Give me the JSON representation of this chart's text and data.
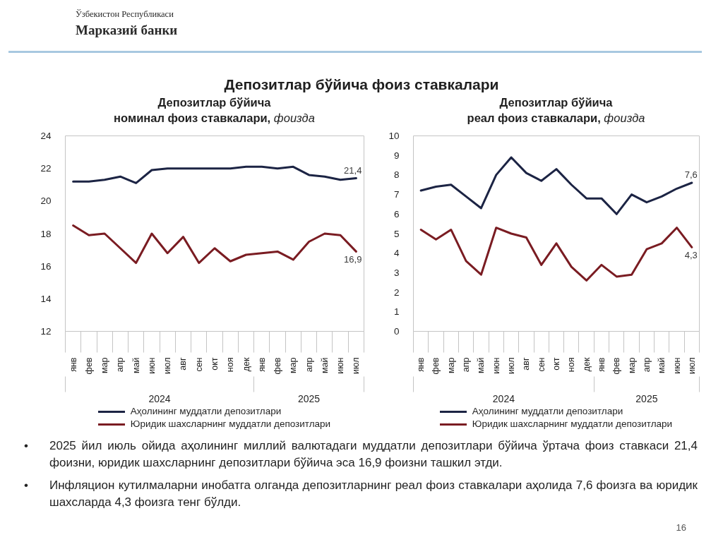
{
  "chart_data": [
    {
      "type": "other",
      "annotations": [
        "Ўзбекистон Республикаси",
        "Марказий банки"
      ],
      "title": "Депозитлар бўйича фоиз ставкалари"
    },
    {
      "type": "line",
      "title": "Депозитлар бўйича\nноминал фоиз ставкалари, фоизда",
      "categories": [
        "янв",
        "фев",
        "мар",
        "апр",
        "май",
        "июн",
        "июл",
        "авг",
        "сен",
        "окт",
        "ноя",
        "дек",
        "янв",
        "фев",
        "мар",
        "апр",
        "май",
        "июн",
        "июл"
      ],
      "ylim": [
        12,
        24
      ],
      "yticks": [
        12,
        14,
        16,
        18,
        20,
        22,
        24
      ],
      "annotations": [
        "2024",
        "2025"
      ],
      "legend": "bottom",
      "series": [
        {
          "name": "Аҳолининг муддатли депозитлари",
          "color": "#1c2444",
          "values": [
            21.2,
            21.2,
            21.3,
            21.5,
            21.1,
            21.9,
            22.0,
            22.0,
            22.0,
            22.0,
            22.0,
            22.1,
            22.1,
            22.0,
            22.1,
            21.6,
            21.5,
            21.3,
            21.4
          ],
          "value_labels": [
            null,
            null,
            null,
            null,
            null,
            null,
            null,
            null,
            null,
            null,
            null,
            null,
            null,
            null,
            null,
            null,
            null,
            null,
            "21,4"
          ]
        },
        {
          "name": "Юридик шахсларнинг муддатли депозитлари",
          "color": "#7a1c22",
          "values": [
            18.5,
            17.9,
            18.0,
            17.1,
            16.2,
            18.0,
            16.8,
            17.8,
            16.2,
            17.1,
            16.3,
            16.7,
            16.8,
            16.9,
            16.4,
            17.5,
            18.0,
            17.9,
            16.9
          ],
          "value_labels": [
            null,
            null,
            null,
            null,
            null,
            null,
            null,
            null,
            null,
            null,
            null,
            null,
            null,
            null,
            null,
            null,
            null,
            null,
            "16,9"
          ]
        }
      ]
    },
    {
      "type": "line",
      "title": "Депозитлар бўйича\nреал фоиз ставкалари, фоизда",
      "categories": [
        "янв",
        "фев",
        "мар",
        "апр",
        "май",
        "июн",
        "июл",
        "авг",
        "сен",
        "окт",
        "ноя",
        "дек",
        "янв",
        "фев",
        "мар",
        "апр",
        "май",
        "июн",
        "июл"
      ],
      "ylim": [
        0,
        10
      ],
      "yticks": [
        0,
        1,
        2,
        3,
        4,
        5,
        6,
        7,
        8,
        9,
        10
      ],
      "annotations": [
        "2024",
        "2025"
      ],
      "legend": "bottom",
      "series": [
        {
          "name": "Аҳолининг муддатли депозитлари",
          "color": "#1c2444",
          "values": [
            7.2,
            7.4,
            7.5,
            6.9,
            6.3,
            8.0,
            8.9,
            8.1,
            7.7,
            8.3,
            7.5,
            6.8,
            6.8,
            6.0,
            7.0,
            6.6,
            6.9,
            7.3,
            7.6
          ],
          "value_labels": [
            null,
            null,
            null,
            null,
            null,
            null,
            null,
            null,
            null,
            null,
            null,
            null,
            null,
            null,
            null,
            null,
            null,
            null,
            "7,6"
          ]
        },
        {
          "name": "Юридик шахсларнинг муддатли депозитлари",
          "color": "#7a1c22",
          "values": [
            5.2,
            4.7,
            5.2,
            3.6,
            2.9,
            5.3,
            5.0,
            4.8,
            3.4,
            4.5,
            3.3,
            2.6,
            3.4,
            2.8,
            2.9,
            4.2,
            4.5,
            5.3,
            4.3
          ],
          "value_labels": [
            null,
            null,
            null,
            null,
            null,
            null,
            null,
            null,
            null,
            null,
            null,
            null,
            null,
            null,
            null,
            null,
            null,
            null,
            "4,3"
          ]
        }
      ]
    },
    {
      "type": "other",
      "annotations": [
        "• 2025 йил июль ойида аҳолининг миллий валютадаги муддатли депозитлари бўйича ўртача фоиз ставкаси 21,4 фоизни, юридик шахсларнинг депозитлари бўйича эса 16,9 фоизни ташкил этди.",
        "• Инфляцион кутилмаларни инобатга олганда депозитларнинг реал фоиз ставкалари аҳолида 7,6 фоизга ва юридик шахсларда 4,3 фоизга тенг бўлди.",
        "16"
      ]
    }
  ]
}
